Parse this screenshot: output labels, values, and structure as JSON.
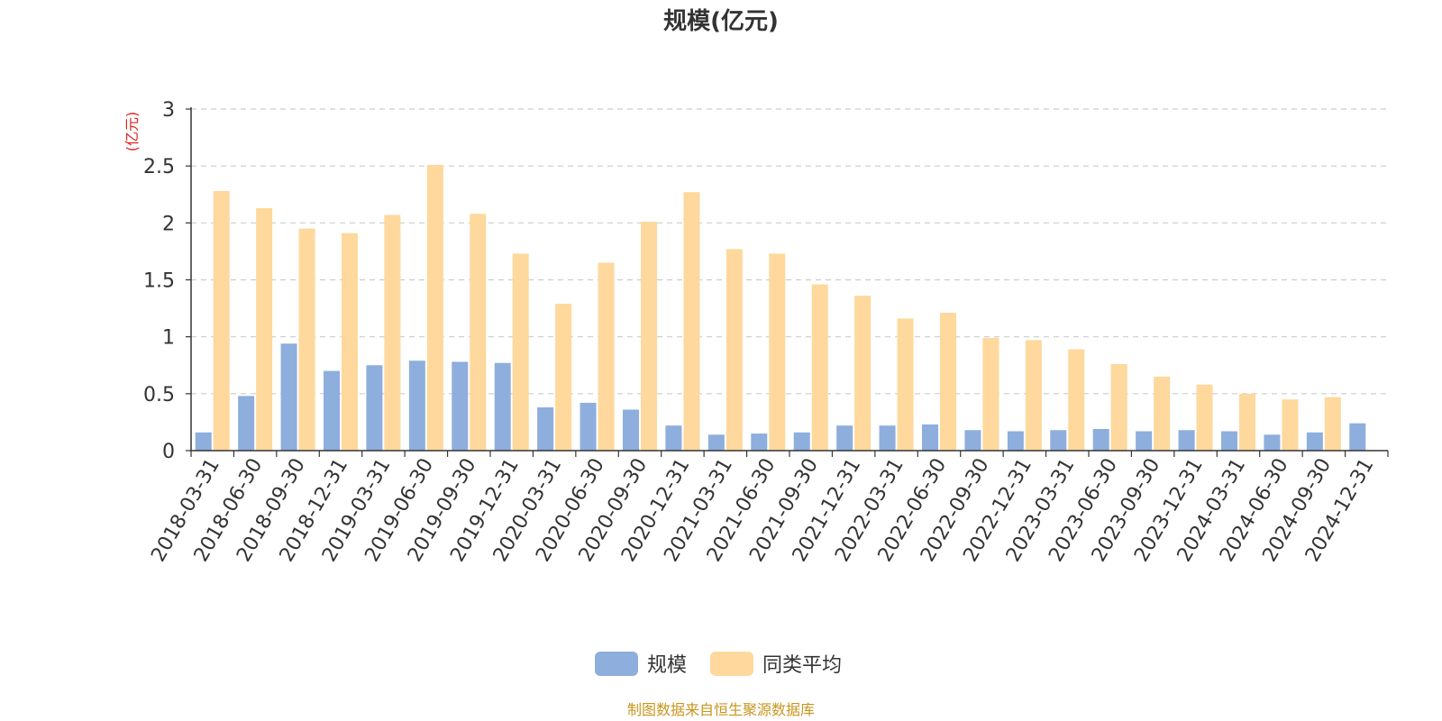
{
  "chart_data": {
    "type": "bar",
    "title": "规模(亿元)",
    "ylabel": "(亿元)",
    "xlabel": "",
    "ylim": [
      0,
      3
    ],
    "yticks": [
      "0",
      "0.5",
      "1",
      "1.5",
      "2",
      "2.5",
      "3"
    ],
    "grid": true,
    "legend_position": "bottom-center",
    "categories": [
      "2018-03-31",
      "2018-06-30",
      "2018-09-30",
      "2018-12-31",
      "2019-03-31",
      "2019-06-30",
      "2019-09-30",
      "2019-12-31",
      "2020-03-31",
      "2020-06-30",
      "2020-09-30",
      "2020-12-31",
      "2021-03-31",
      "2021-06-30",
      "2021-09-30",
      "2021-12-31",
      "2022-03-31",
      "2022-06-30",
      "2022-09-30",
      "2022-12-31",
      "2023-03-31",
      "2023-06-30",
      "2023-09-30",
      "2023-12-31",
      "2024-03-31",
      "2024-06-30",
      "2024-09-30",
      "2024-12-31"
    ],
    "series": [
      {
        "name": "规模",
        "color": "#8eaedd",
        "values": [
          0.16,
          0.48,
          0.94,
          0.7,
          0.75,
          0.79,
          0.78,
          0.77,
          0.38,
          0.42,
          0.36,
          0.22,
          0.14,
          0.15,
          0.16,
          0.22,
          0.22,
          0.23,
          0.18,
          0.17,
          0.18,
          0.19,
          0.17,
          0.18,
          0.17,
          0.14,
          0.16,
          0.24
        ]
      },
      {
        "name": "同类平均",
        "color": "#fed89c",
        "values": [
          2.28,
          2.13,
          1.95,
          1.91,
          2.07,
          2.51,
          2.08,
          1.73,
          1.29,
          1.65,
          2.01,
          2.27,
          1.77,
          1.73,
          1.46,
          1.36,
          1.16,
          1.21,
          0.99,
          0.97,
          0.89,
          0.76,
          0.65,
          0.58,
          0.5,
          0.45,
          0.47,
          null
        ]
      }
    ]
  },
  "footer": {
    "source": "制图数据来自恒生聚源数据库",
    "source_color": "#c8961e"
  },
  "colors": {
    "axis": "#333333",
    "grid": "#cccccc",
    "ylabel": "#e02020"
  }
}
